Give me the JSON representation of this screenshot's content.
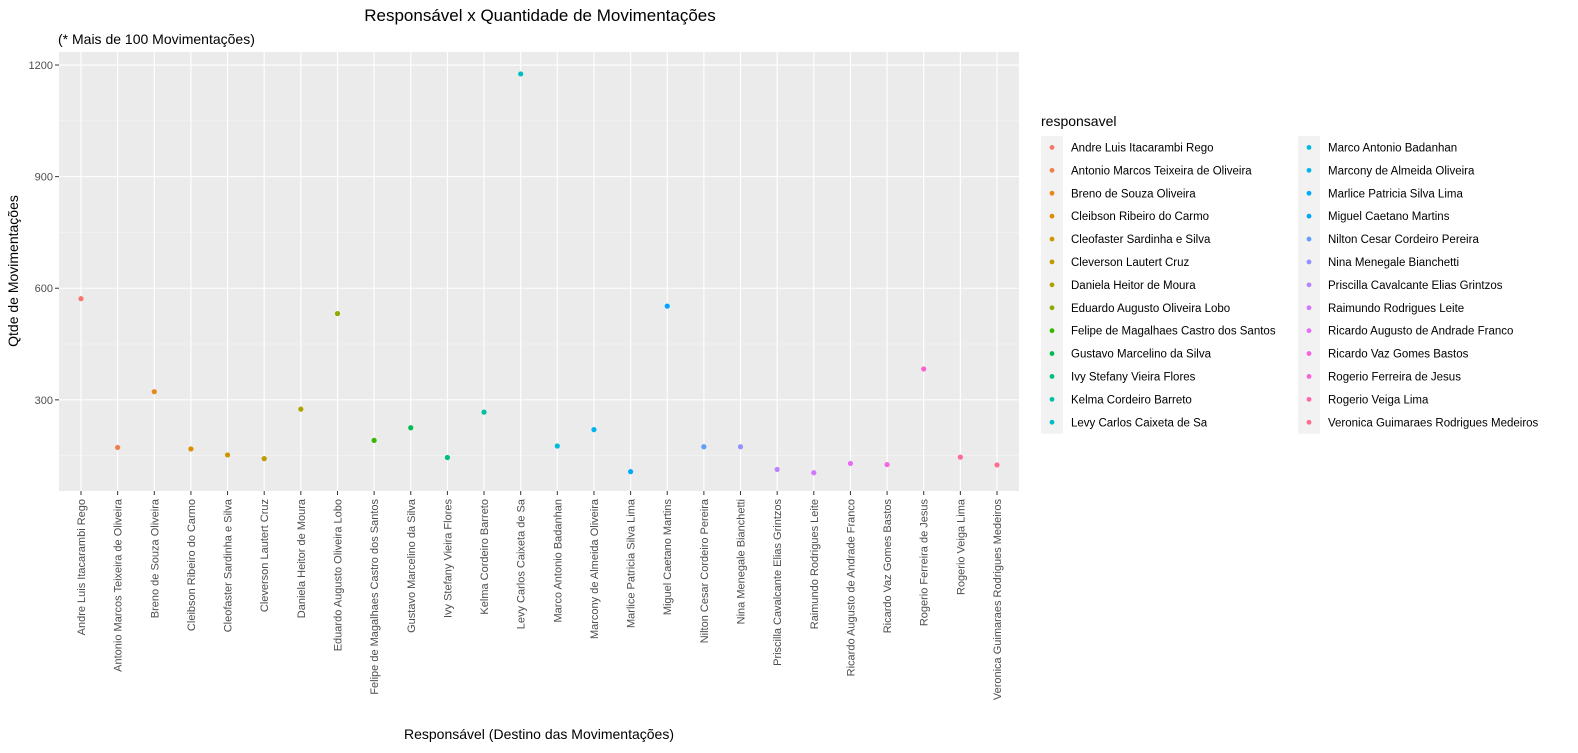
{
  "chart_data": {
    "type": "scatter",
    "title": "Responsável x Quantidade de Movimentações",
    "subtitle": "(* Mais de 100 Movimentações)",
    "xlabel": "Responsável (Destino das Movimentações)",
    "ylabel": "Qtde de Movimentações",
    "ylim": [
      55,
      1235
    ],
    "yticks": [
      300,
      600,
      900,
      1200
    ],
    "grid": true,
    "legend_title": "responsavel",
    "legend_position": "right",
    "categories": [
      "Andre Luis Itacarambi Rego",
      "Antonio Marcos Teixeira de Oliveira",
      "Breno de Souza Oliveira",
      "Cleibson Ribeiro do Carmo",
      "Cleofaster Sardinha e Silva",
      "Cleverson Lautert Cruz",
      "Daniela Heitor de Moura",
      "Eduardo Augusto Oliveira Lobo",
      "Felipe de Magalhaes Castro dos Santos",
      "Gustavo Marcelino da Silva",
      "Ivy Stefany Vieira Flores",
      "Kelma Cordeiro Barreto",
      "Levy Carlos Caixeta de Sa",
      "Marco Antonio Badanhan",
      "Marcony de Almeida Oliveira",
      "Marlice Patricia Silva Lima",
      "Miguel Caetano Martins",
      "Nilton Cesar Cordeiro Pereira",
      "Nina Menegale Bianchetti",
      "Priscilla Cavalcante Elias Grintzos",
      "Raimundo Rodrigues Leite",
      "Ricardo Augusto de Andrade Franco",
      "Ricardo Vaz Gomes Bastos",
      "Rogerio Ferreira de Jesus",
      "Rogerio Veiga Lima",
      "Veronica Guimaraes Rodrigues Medeiros"
    ],
    "values": [
      572,
      172,
      322,
      168,
      152,
      142,
      275,
      532,
      191,
      225,
      145,
      267,
      1176,
      176,
      220,
      107,
      552,
      174,
      174,
      113,
      104,
      129,
      126,
      383,
      146,
      125
    ],
    "colors": [
      "#F8766D",
      "#F07F4D",
      "#E7861B",
      "#DB8E00",
      "#CD9600",
      "#BE9C00",
      "#AEA200",
      "#8CAB00",
      "#39B600",
      "#00BB4E",
      "#00BF7D",
      "#00C0A3",
      "#00BFC4",
      "#00BBDA",
      "#00B6EB",
      "#00ABFD",
      "#00A5FF",
      "#619CFF",
      "#9590FF",
      "#B983FF",
      "#D277FF",
      "#E76BF3",
      "#F564E3",
      "#FD61D1",
      "#FF67A4",
      "#FF6C90"
    ]
  }
}
